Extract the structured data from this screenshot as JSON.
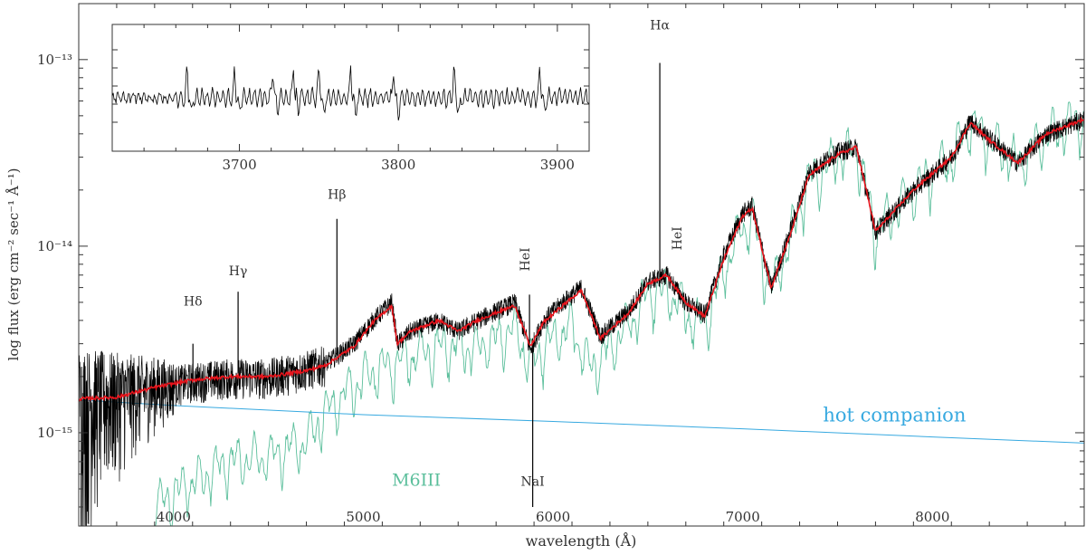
{
  "chart_data": {
    "type": "line",
    "xlabel": "wavelength (Å)",
    "ylabel": "log flux (erg cm⁻² sec⁻¹ Å⁻¹)",
    "xlim": [
      3500,
      8800
    ],
    "ylim_log10": [
      -15.5,
      -12.7
    ],
    "yscale": "log",
    "x_ticks": [
      4000,
      5000,
      6000,
      7000,
      8000
    ],
    "y_tick_labels": [
      {
        "value_log10": -13,
        "label": "10⁻¹³"
      },
      {
        "value_log10": -14,
        "label": "10⁻¹⁴"
      },
      {
        "value_log10": -15,
        "label": "10⁻¹⁵"
      }
    ],
    "colors": {
      "observed": "#000000",
      "model_fit": "#e8141c",
      "M6III": "#5cbf9c",
      "hot_companion": "#37a9e0",
      "axis": "#333333",
      "label": "#333333"
    },
    "series": [
      {
        "name": "",
        "color_key": "observed",
        "x": [
          3500,
          3700,
          3900,
          4100,
          4300,
          4500,
          4700,
          4800,
          4950,
          5050,
          5150,
          5180,
          5250,
          5400,
          5500,
          5600,
          5700,
          5800,
          5880,
          5950,
          6050,
          6150,
          6250,
          6400,
          6500,
          6600,
          6700,
          6800,
          6900,
          7000,
          7050,
          7150,
          7250,
          7350,
          7500,
          7600,
          7700,
          7900,
          8100,
          8200,
          8300,
          8450,
          8600,
          8800
        ],
        "y": [
          1.5e-15,
          1.6e-15,
          1.75e-15,
          1.9e-15,
          2e-15,
          2e-15,
          2.2e-15,
          2.35e-15,
          3e-15,
          4e-15,
          5e-15,
          3e-15,
          3.5e-15,
          4e-15,
          3.5e-15,
          4e-15,
          4.5e-15,
          5e-15,
          2.8e-15,
          4e-15,
          5e-15,
          6e-15,
          3.3e-15,
          4.5e-15,
          6.5e-15,
          7e-15,
          5e-15,
          4.3e-15,
          9e-15,
          1.5e-14,
          1.65e-14,
          6e-15,
          1.2e-14,
          2.5e-14,
          3.2e-14,
          3.4e-14,
          1.2e-14,
          2e-14,
          3e-14,
          4.7e-14,
          3.8e-14,
          2.8e-14,
          4e-14,
          4.8e-14
        ]
      },
      {
        "name": "",
        "color_key": "model_fit",
        "x": [
          3500,
          3700,
          3900,
          4100,
          4300,
          4500,
          4700,
          4800,
          4950,
          5050,
          5150,
          5180,
          5250,
          5400,
          5500,
          5600,
          5700,
          5800,
          5880,
          5950,
          6050,
          6150,
          6250,
          6400,
          6500,
          6600,
          6700,
          6800,
          6900,
          7000,
          7050,
          7150,
          7250,
          7350,
          7500,
          7600,
          7700,
          7900,
          8100,
          8200,
          8300,
          8450,
          8600,
          8800
        ],
        "y": [
          1.52e-15,
          1.55e-15,
          1.75e-15,
          1.92e-15,
          2e-15,
          2e-15,
          2.15e-15,
          2.3e-15,
          2.9e-15,
          3.9e-15,
          4.8e-15,
          3e-15,
          3.5e-15,
          4e-15,
          3.5e-15,
          4e-15,
          4.4e-15,
          4.8e-15,
          2.9e-15,
          3.9e-15,
          4.8e-15,
          5.8e-15,
          3.2e-15,
          4.4e-15,
          6.3e-15,
          7e-15,
          5e-15,
          4.2e-15,
          8.5e-15,
          1.45e-14,
          1.6e-14,
          6e-15,
          1.15e-14,
          2.4e-14,
          3.1e-14,
          3.4e-14,
          1.2e-14,
          2e-14,
          3e-14,
          4.6e-14,
          3.7e-14,
          2.8e-14,
          4e-14,
          4.8e-14
        ]
      },
      {
        "name": "M6III",
        "color_key": "M6III",
        "x": [
          3900,
          4100,
          4300,
          4500,
          4700,
          4780,
          4900,
          5000,
          5100,
          5200,
          5300,
          5450,
          5600,
          5700,
          5800,
          5880,
          6000,
          6100,
          6200,
          6300,
          6400,
          6500,
          6600,
          6700,
          6800,
          6900,
          7000,
          7050,
          7150,
          7250,
          7350,
          7500,
          7600,
          7700,
          7900,
          8100,
          8200,
          8300,
          8450,
          8600,
          8800
        ],
        "y": [
          4e-16,
          5.5e-16,
          7e-16,
          7.5e-16,
          9e-16,
          1.2e-15,
          1.6e-15,
          2e-15,
          2.2e-15,
          2.4e-15,
          2.7e-15,
          3e-15,
          2.8e-15,
          3.2e-15,
          3.6e-15,
          2.4e-15,
          3.2e-15,
          3.7e-15,
          2.2e-15,
          2.8e-15,
          3.8e-15,
          5.5e-15,
          5.8e-15,
          4.4e-15,
          3.8e-15,
          7.5e-15,
          1.3e-14,
          1.45e-14,
          5.8e-15,
          1.1e-14,
          2.3e-14,
          3e-14,
          3.3e-14,
          1.2e-14,
          2e-14,
          3e-14,
          4.6e-14,
          3.7e-14,
          2.8e-14,
          4e-14,
          4.8e-14
        ]
      },
      {
        "name": "hot companion",
        "color_key": "hot_companion",
        "x": [
          3500,
          4000,
          5000,
          6000,
          7000,
          8000,
          8800
        ],
        "y": [
          1.5e-15,
          1.4e-15,
          1.25e-15,
          1.15e-15,
          1.05e-15,
          9.5e-16,
          8.8e-16
        ]
      }
    ],
    "line_labels": [
      {
        "text": "Hδ",
        "x": 4102,
        "y": 4.8e-15,
        "vertical": false,
        "color_key": "label"
      },
      {
        "text": "Hγ",
        "x": 4340,
        "y": 7e-15,
        "vertical": false,
        "color_key": "label"
      },
      {
        "text": "Hβ",
        "x": 4861,
        "y": 1.8e-14,
        "vertical": false,
        "color_key": "label"
      },
      {
        "text": "HeI",
        "x": 5876,
        "y": 8.5e-15,
        "vertical": true,
        "color_key": "label"
      },
      {
        "text": "Hα",
        "x": 6563,
        "y": 1.45e-13,
        "vertical": false,
        "color_key": "label"
      },
      {
        "text": "HeI",
        "x": 6678,
        "y": 1.1e-14,
        "vertical": true,
        "color_key": "label"
      },
      {
        "text": "NaI",
        "x": 5893,
        "y": 5.2e-16,
        "vertical": false,
        "color_key": "label"
      },
      {
        "text": "M6III",
        "x": 5280,
        "y": 5.2e-16,
        "vertical": false,
        "color_key": "M6III"
      },
      {
        "text": "hot companion",
        "x": 7800,
        "y": 1.15e-15,
        "vertical": false,
        "color_key": "hot_companion"
      }
    ],
    "emission_lines": [
      {
        "x": 4102,
        "peak": 3e-15
      },
      {
        "x": 4340,
        "peak": 5.7e-15
      },
      {
        "x": 4861,
        "peak": 1.4e-14
      },
      {
        "x": 5876,
        "peak": 5.5e-15
      },
      {
        "x": 6563,
        "peak": 9.6e-14
      }
    ],
    "absorption_lines": [
      {
        "x": 5893,
        "bottom": 4e-16
      }
    ],
    "inset": {
      "type": "line",
      "xlim": [
        3620,
        3920
      ],
      "x_ticks": [
        3700,
        3800,
        3900
      ],
      "series_color_key": "observed",
      "spike_positions": [
        3667,
        3697,
        3721,
        3734,
        3750,
        3770,
        3797,
        3835,
        3889
      ]
    }
  }
}
